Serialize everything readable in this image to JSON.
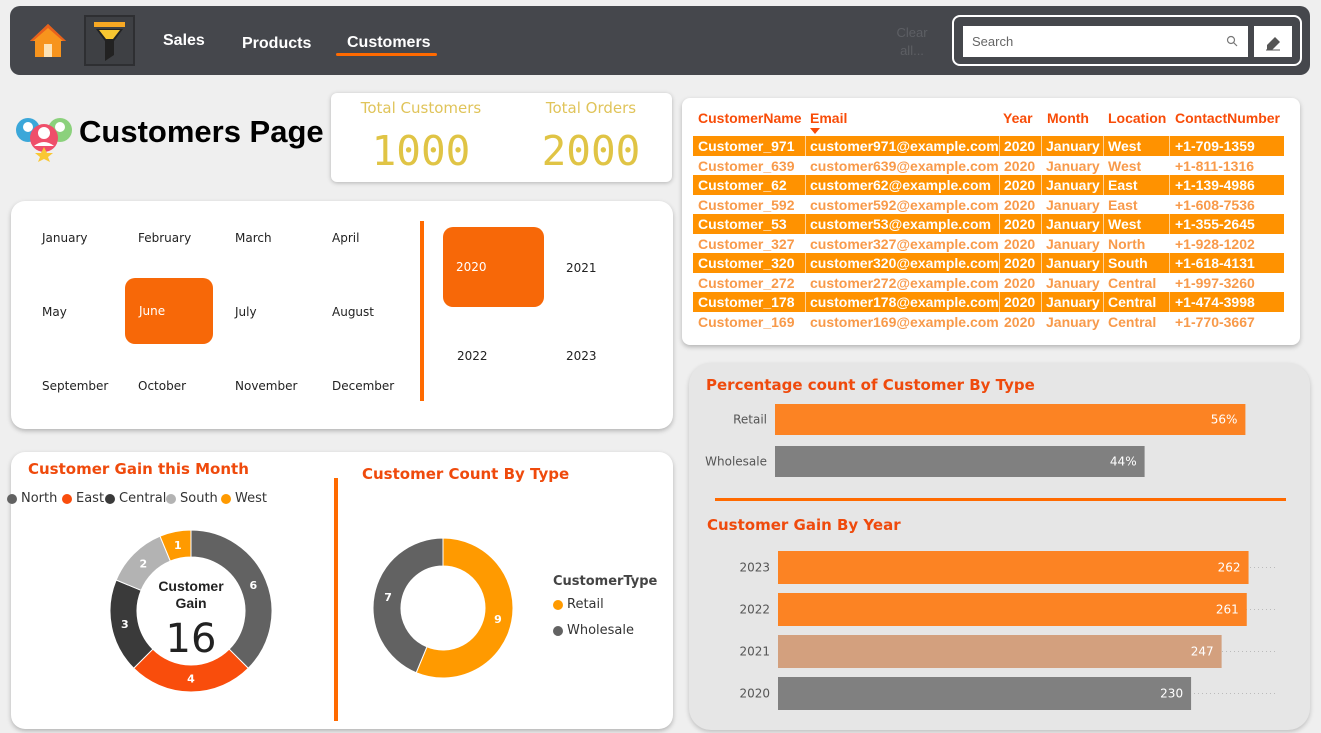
{
  "nav": {
    "tabs": [
      {
        "label": "Sales"
      },
      {
        "label": "Products"
      },
      {
        "label": "Customers"
      }
    ],
    "clear_all": "Clear all...",
    "search_placeholder": "Search"
  },
  "page": {
    "title": "Customers Page"
  },
  "kpis": {
    "total_customers": {
      "label": "Total Customers",
      "value": "1000"
    },
    "total_orders": {
      "label": "Total Orders",
      "value": "2000"
    }
  },
  "slicer": {
    "months": [
      "January",
      "February",
      "March",
      "April",
      "May",
      "June",
      "July",
      "August",
      "September",
      "October",
      "November",
      "December"
    ],
    "selected_month": "June",
    "years": [
      "2020",
      "2021",
      "2022",
      "2023"
    ],
    "selected_year": "2020"
  },
  "table": {
    "columns": [
      "CustomerName",
      "Email",
      "Year",
      "Month",
      "Location",
      "ContactNumber"
    ],
    "rows": [
      [
        "Customer_971",
        "customer971@example.com",
        "2020",
        "January",
        "West",
        "+1-709-1359"
      ],
      [
        "Customer_639",
        "customer639@example.com",
        "2020",
        "January",
        "West",
        "+1-811-1316"
      ],
      [
        "Customer_62",
        "customer62@example.com",
        "2020",
        "January",
        "East",
        "+1-139-4986"
      ],
      [
        "Customer_592",
        "customer592@example.com",
        "2020",
        "January",
        "East",
        "+1-608-7536"
      ],
      [
        "Customer_53",
        "customer53@example.com",
        "2020",
        "January",
        "West",
        "+1-355-2645"
      ],
      [
        "Customer_327",
        "customer327@example.com",
        "2020",
        "January",
        "North",
        "+1-928-1202"
      ],
      [
        "Customer_320",
        "customer320@example.com",
        "2020",
        "January",
        "South",
        "+1-618-4131"
      ],
      [
        "Customer_272",
        "customer272@example.com",
        "2020",
        "January",
        "Central",
        "+1-997-3260"
      ],
      [
        "Customer_178",
        "customer178@example.com",
        "2020",
        "January",
        "Central",
        "+1-474-3998"
      ],
      [
        "Customer_169",
        "customer169@example.com",
        "2020",
        "January",
        "Central",
        "+1-770-3667"
      ]
    ]
  },
  "charts": {
    "gain_month_title": "Customer Gain this Month",
    "gain_month_center_label": "Customer Gain",
    "gain_month_center_value": "16",
    "count_by_type_title": "Customer Count By Type",
    "count_by_type_legend_title": "CustomerType",
    "pct_by_type_title": "Percentage count of Customer By Type",
    "gain_by_year_title": "Customer Gain By Year"
  },
  "colors": {
    "accent": "#ff6a00",
    "kpi": "#e0c445",
    "nav_bg": "#45474c"
  },
  "chart_data": [
    {
      "type": "pie",
      "title": "Customer Gain this Month",
      "categories": [
        "North",
        "East",
        "Central",
        "South",
        "West"
      ],
      "values": [
        6,
        4,
        3,
        2,
        1
      ],
      "colors": [
        "#626262",
        "#f94d0c",
        "#3a3a3a",
        "#b3b3b3",
        "#ff9a00"
      ]
    },
    {
      "type": "pie",
      "title": "Customer Count By Type",
      "categories": [
        "Retail",
        "Wholesale"
      ],
      "values": [
        9,
        7
      ],
      "colors": [
        "#ff9a00",
        "#626262"
      ]
    },
    {
      "type": "bar",
      "title": "Percentage count of Customer By Type",
      "categories": [
        "Retail",
        "Wholesale"
      ],
      "values": [
        56,
        44
      ],
      "labels": [
        "56%",
        "44%"
      ],
      "colors": [
        "#fc8323",
        "#808080"
      ]
    },
    {
      "type": "bar",
      "title": "Customer Gain By Year",
      "categories": [
        "2023",
        "2022",
        "2021",
        "2020"
      ],
      "values": [
        262,
        261,
        247,
        230
      ],
      "colors": [
        "#fc8323",
        "#fc8323",
        "#d3a07e",
        "#808080"
      ]
    }
  ]
}
